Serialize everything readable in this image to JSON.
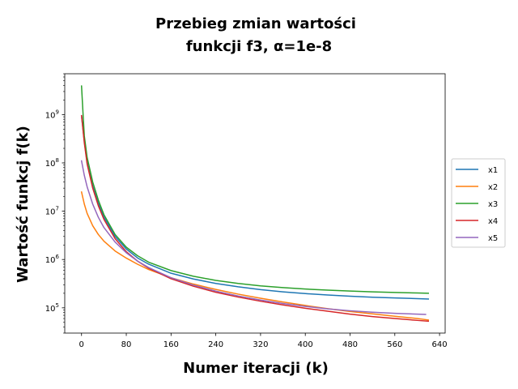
{
  "chart_data": {
    "type": "line",
    "title_lines": [
      "Przebieg zmian wartości",
      "funkcji f3, α=1e-8"
    ],
    "xlabel": "Numer iteracji (k)",
    "ylabel": "Wartość funkcj f(k)",
    "yscale": "log",
    "xlim": [
      -30,
      650
    ],
    "ylim": [
      30000,
      7000000000
    ],
    "x_ticks": [
      0,
      80,
      160,
      240,
      320,
      400,
      480,
      560,
      640
    ],
    "y_ticks": [
      {
        "value": 100000,
        "mantissa": "10",
        "exp": "5"
      },
      {
        "value": 1000000,
        "mantissa": "10",
        "exp": "6"
      },
      {
        "value": 10000000,
        "mantissa": "10",
        "exp": "7"
      },
      {
        "value": 100000000,
        "mantissa": "10",
        "exp": "8"
      },
      {
        "value": 1000000000,
        "mantissa": "10",
        "exp": "9"
      }
    ],
    "grid": false,
    "legend_position": "center-right, outside plot",
    "series": [
      {
        "name": "x1",
        "color": "#1f77b4",
        "x": [
          0,
          5,
          10,
          20,
          30,
          40,
          60,
          80,
          100,
          120,
          160,
          200,
          240,
          280,
          320,
          360,
          400,
          440,
          480,
          520,
          560,
          600,
          620
        ],
        "y": [
          950000000,
          280000000,
          100000000,
          33000000,
          14500000,
          7600000,
          3000000,
          1650000,
          1080000,
          800000,
          520000,
          395000,
          320000,
          272000,
          238000,
          214000,
          197000,
          184000,
          174000,
          166000,
          160000,
          155000,
          152000
        ]
      },
      {
        "name": "x2",
        "color": "#ff7f0e",
        "x": [
          0,
          5,
          10,
          20,
          30,
          40,
          60,
          80,
          100,
          120,
          160,
          200,
          240,
          280,
          320,
          360,
          400,
          440,
          480,
          520,
          560,
          600,
          620
        ],
        "y": [
          25000000,
          14000000,
          9000000,
          5000000,
          3300000,
          2400000,
          1500000,
          1070000,
          800000,
          620000,
          420000,
          310000,
          240000,
          192000,
          158000,
          132000,
          112000,
          96000,
          84000,
          75000,
          67000,
          60000,
          56000
        ]
      },
      {
        "name": "x3",
        "color": "#2ca02c",
        "x": [
          0,
          3,
          5,
          10,
          20,
          30,
          40,
          60,
          80,
          100,
          120,
          160,
          200,
          240,
          280,
          320,
          360,
          400,
          440,
          480,
          520,
          560,
          600,
          620
        ],
        "y": [
          3900000000,
          900000000,
          360000000,
          130000000,
          40000000,
          17000000,
          8500000,
          3300000,
          1800000,
          1200000,
          880000,
          590000,
          450000,
          370000,
          320000,
          285000,
          262000,
          245000,
          232000,
          222000,
          214000,
          208000,
          203000,
          200000
        ]
      },
      {
        "name": "x4",
        "color": "#d62728",
        "x": [
          0,
          5,
          10,
          20,
          30,
          40,
          60,
          80,
          100,
          120,
          160,
          200,
          240,
          280,
          320,
          360,
          400,
          440,
          480,
          520,
          560,
          600,
          620
        ],
        "y": [
          950000000,
          260000000,
          95000000,
          30000000,
          13000000,
          6800000,
          2700000,
          1450000,
          930000,
          660000,
          400000,
          280000,
          210000,
          167000,
          137000,
          115000,
          98000,
          85000,
          74000,
          66000,
          60000,
          55000,
          53000
        ]
      },
      {
        "name": "x5",
        "color": "#9467bd",
        "x": [
          0,
          5,
          10,
          20,
          30,
          40,
          60,
          80,
          100,
          120,
          160,
          200,
          240,
          280,
          320,
          360,
          400,
          440,
          480,
          520,
          560,
          600,
          615
        ],
        "y": [
          110000000,
          55000000,
          32000000,
          14000000,
          7500000,
          4600000,
          2300000,
          1380000,
          930000,
          680000,
          420000,
          295000,
          222000,
          176000,
          145000,
          123000,
          107000,
          95000,
          87000,
          81000,
          77000,
          74000,
          73000
        ]
      }
    ]
  }
}
